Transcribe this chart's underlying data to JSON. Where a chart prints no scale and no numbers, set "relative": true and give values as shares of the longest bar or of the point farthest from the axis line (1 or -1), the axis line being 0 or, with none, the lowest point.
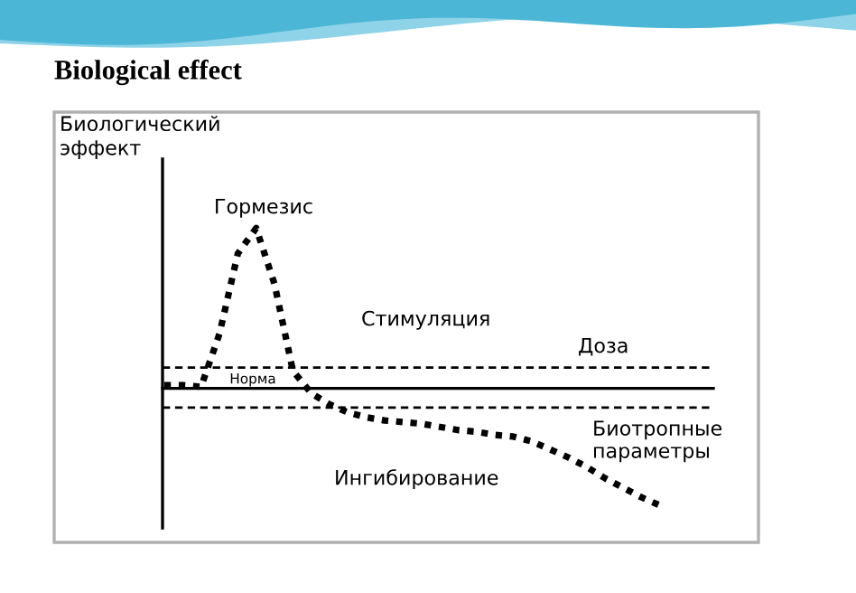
{
  "chart_data": {
    "type": "line",
    "title": "Biological effect",
    "ylabel": "Биологический\nэффект",
    "xlabel": "Доза",
    "relative": true,
    "categories": [
      null,
      null,
      null,
      null,
      null,
      null,
      null,
      null,
      null,
      null,
      null,
      null,
      null,
      null,
      null,
      null,
      null,
      null,
      null,
      null,
      null,
      null,
      null,
      null,
      null,
      null,
      null,
      null
    ],
    "series": [
      {
        "color": "#000000",
        "values": [
          0.02,
          0.02,
          0.01,
          0.34,
          0.84,
          1.0,
          0.65,
          0.11,
          -0.03,
          -0.1,
          -0.15,
          -0.18,
          -0.2,
          -0.21,
          -0.22,
          -0.24,
          -0.26,
          -0.27,
          -0.29,
          -0.3,
          -0.33,
          -0.38,
          -0.43,
          -0.49,
          -0.56,
          -0.62,
          -0.68,
          -0.73
        ]
      }
    ],
    "line_style": "dotted",
    "marker": "none",
    "ref_lines": [
      {
        "axis": "y",
        "value": 0.13,
        "line_style": "dashed",
        "color": "#000000"
      },
      {
        "axis": "y",
        "value": -0.12,
        "line_style": "dashed",
        "color": "#000000"
      }
    ],
    "annotations": [
      "Гормезис",
      "Стимуляция",
      "Норма",
      "Биотропные\nпараметры",
      "Ингибирование"
    ]
  }
}
